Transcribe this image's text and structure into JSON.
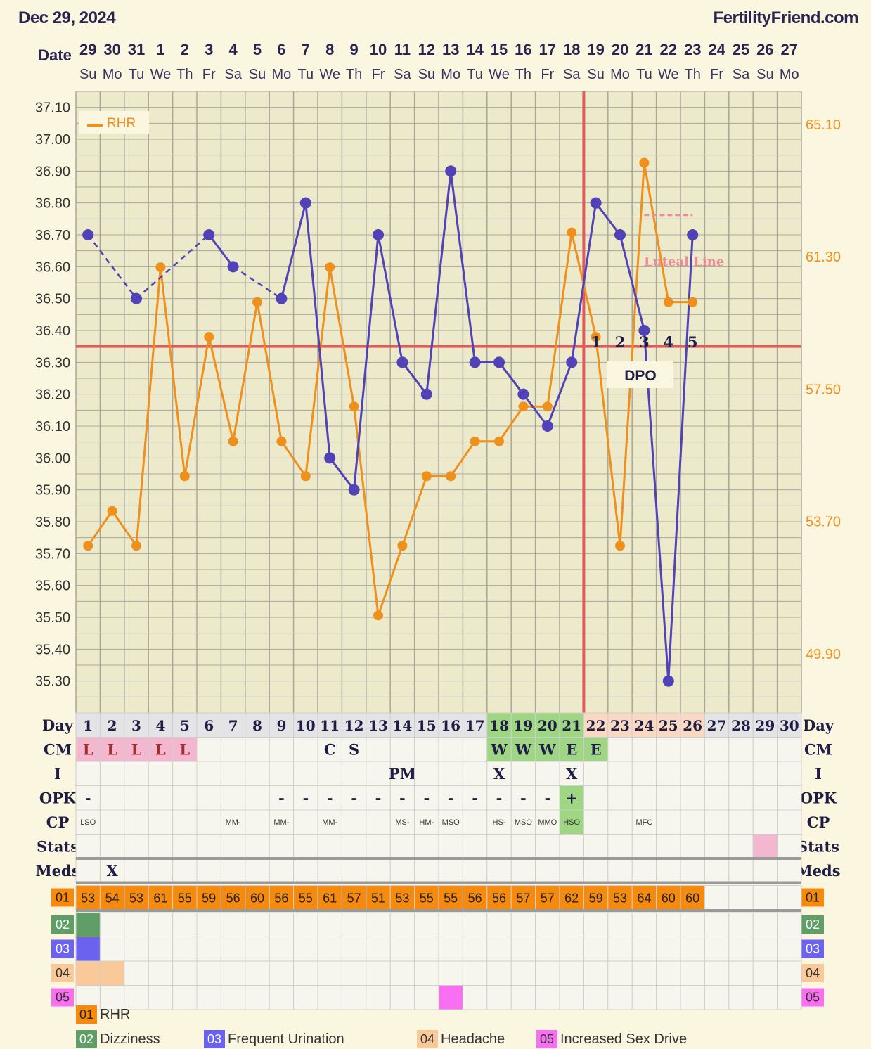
{
  "header": {
    "date": "Dec 29, 2024",
    "site": "FertilityFriend.com"
  },
  "colors": {
    "temp_line": "#5242b8",
    "rhr_line": "#f0901c",
    "coverline": "#e05a5a",
    "ovulation_line": "#e05a5a",
    "luteal_line": "#f08a96",
    "right_axis_text": "#f0901c",
    "chart_bg": "#eceacb",
    "grid": "#a8a89a",
    "cm_pink": "#f3b7cf",
    "green": "#9ed683",
    "peach": "#f9d9c3",
    "rhr_cell": "#f58a0c",
    "dizziness": "#5f9f67",
    "urination": "#6b62ef",
    "headache": "#f9c99a",
    "sex_drive": "#f96ff1"
  },
  "chart_data": {
    "type": "line",
    "row_label_date": "Date",
    "dates": [
      "29",
      "30",
      "31",
      "1",
      "2",
      "3",
      "4",
      "5",
      "6",
      "7",
      "8",
      "9",
      "10",
      "11",
      "12",
      "13",
      "14",
      "15",
      "16",
      "17",
      "18",
      "19",
      "20",
      "21",
      "22",
      "23",
      "24",
      "25",
      "26",
      "27"
    ],
    "weekdays": [
      "Su",
      "Mo",
      "Tu",
      "We",
      "Th",
      "Fr",
      "Sa",
      "Su",
      "Mo",
      "Tu",
      "We",
      "Th",
      "Fr",
      "Sa",
      "Su",
      "Mo",
      "Tu",
      "We",
      "Th",
      "Fr",
      "Sa",
      "Su",
      "Mo",
      "Tu",
      "We",
      "Th",
      "Fr",
      "Sa",
      "Su",
      "Mo"
    ],
    "cycle_days": [
      "1",
      "2",
      "3",
      "4",
      "5",
      "6",
      "7",
      "8",
      "9",
      "10",
      "11",
      "12",
      "13",
      "14",
      "15",
      "16",
      "17",
      "18",
      "19",
      "20",
      "21",
      "22",
      "23",
      "24",
      "25",
      "26",
      "27",
      "28",
      "29",
      "30"
    ],
    "y_left": {
      "min": 35.2,
      "max": 37.15,
      "ticks": [
        "37.10",
        "37.00",
        "36.90",
        "36.80",
        "36.70",
        "36.60",
        "36.50",
        "36.40",
        "36.30",
        "36.20",
        "36.10",
        "36.00",
        "35.90",
        "35.80",
        "35.70",
        "35.60",
        "35.50",
        "35.40",
        "35.30"
      ]
    },
    "y_right": {
      "ticks": [
        "65.10",
        "61.30",
        "57.50",
        "53.70",
        "49.90"
      ],
      "min": 48.2,
      "max": 66.05
    },
    "series": [
      {
        "key": "temp",
        "values": [
          36.7,
          null,
          36.5,
          null,
          null,
          36.7,
          36.6,
          null,
          36.5,
          36.8,
          36.0,
          35.9,
          36.7,
          36.3,
          36.2,
          36.9,
          36.3,
          36.3,
          36.2,
          36.1,
          36.3,
          36.8,
          36.7,
          36.4,
          35.3,
          36.7,
          null,
          null,
          null,
          null
        ],
        "dashed_segments": [
          [
            1,
            3
          ],
          [
            3,
            6
          ],
          [
            7,
            9
          ]
        ]
      },
      {
        "key": "rhr",
        "name": "RHR",
        "values": [
          53,
          54,
          53,
          61,
          55,
          59,
          56,
          60,
          56,
          55,
          61,
          57,
          51,
          53,
          55,
          55,
          56,
          56,
          57,
          57,
          62,
          59,
          53,
          64,
          60,
          60,
          null,
          null,
          null,
          null
        ]
      }
    ],
    "coverline": 36.35,
    "ovulation_day": 21,
    "dpo_labels": [
      "1",
      "2",
      "3",
      "4",
      "5"
    ],
    "dpo_text": "DPO",
    "luteal_label": "Luteal Line",
    "luteal_range": [
      24,
      26
    ],
    "luteal_value": 62.5,
    "legend": "RHR"
  },
  "table": {
    "rows": [
      {
        "label": "Day",
        "key": "day"
      },
      {
        "label": "CM",
        "values": [
          "L",
          "L",
          "L",
          "L",
          "L",
          "",
          "",
          "",
          "",
          "",
          "C",
          "S",
          "",
          "",
          "",
          "",
          "",
          "W",
          "W",
          "W",
          "E",
          "E",
          "",
          "",
          "",
          "",
          "",
          "",
          "",
          ""
        ]
      },
      {
        "label": "I",
        "values": [
          "",
          "",
          "",
          "",
          "",
          "",
          "",
          "",
          "",
          "",
          "",
          "",
          "",
          "PM",
          "",
          "",
          "",
          "X",
          "",
          "",
          "X",
          "",
          "",
          "",
          "",
          "",
          "",
          "",
          "",
          ""
        ]
      },
      {
        "label": "OPK",
        "values": [
          "-",
          "",
          "",
          "",
          "",
          "",
          "",
          "",
          "-",
          "-",
          "-",
          "-",
          "-",
          "-",
          "-",
          "-",
          "-",
          "-",
          "-",
          "-",
          "+",
          "",
          "",
          "",
          "",
          "",
          "",
          "",
          "",
          ""
        ]
      },
      {
        "label": "CP",
        "values": [
          "LSO",
          "",
          "",
          "",
          "",
          "",
          "MM-",
          "",
          "MM-",
          "",
          "MM-",
          "",
          "",
          "MS-",
          "HM-",
          "MSO",
          "",
          "HS-",
          "MSO",
          "MMO",
          "HSO",
          "",
          "",
          "MFC",
          "",
          "",
          "",
          "",
          "",
          ""
        ]
      },
      {
        "label": "Stats",
        "values": [
          "",
          "",
          "",
          "",
          "",
          "",
          "",
          "",
          "",
          "",
          "",
          "",
          "",
          "",
          "",
          "",
          "",
          "",
          "",
          "",
          "",
          "",
          "",
          "",
          "",
          "",
          "",
          "",
          "",
          ""
        ]
      },
      {
        "label": "Meds",
        "values": [
          "",
          "X",
          "",
          "",
          "",
          "",
          "",
          "",
          "",
          "",
          "",
          "",
          "",
          "",
          "",
          "",
          "",
          "",
          "",
          "",
          "",
          "",
          "",
          "",
          "",
          "",
          "",
          "",
          "",
          ""
        ]
      }
    ],
    "rhr_row": {
      "code": "01",
      "values": [
        "53",
        "54",
        "53",
        "61",
        "55",
        "59",
        "56",
        "60",
        "56",
        "55",
        "61",
        "57",
        "51",
        "53",
        "55",
        "55",
        "56",
        "56",
        "57",
        "57",
        "62",
        "59",
        "53",
        "64",
        "60",
        "60",
        "",
        "",
        "",
        ""
      ]
    },
    "symptom_rows": [
      {
        "code": "02",
        "filled": [
          1
        ]
      },
      {
        "code": "03",
        "filled": [
          1
        ]
      },
      {
        "code": "04",
        "filled": [
          1,
          2
        ]
      },
      {
        "code": "05",
        "filled": [
          16
        ]
      }
    ],
    "stats_filled": [
      29
    ]
  },
  "legend_items": [
    {
      "code": "01",
      "label": "RHR"
    },
    {
      "code": "02",
      "label": "Dizziness"
    },
    {
      "code": "03",
      "label": "Frequent Urination"
    },
    {
      "code": "04",
      "label": "Headache"
    },
    {
      "code": "05",
      "label": "Increased Sex Drive"
    }
  ]
}
